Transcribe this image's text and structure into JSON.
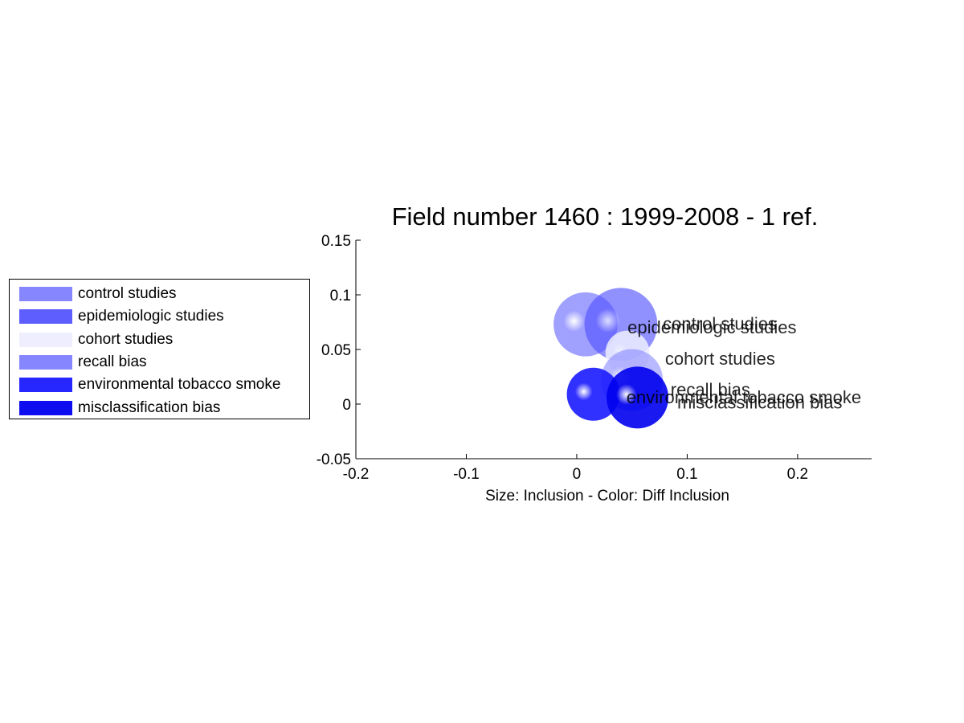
{
  "chart_data": {
    "type": "scatter",
    "title": "Field number 1460 : 1999-2008  - 1 ref.",
    "xlabel": "Size: Inclusion - Color: Diff Inclusion",
    "ylabel": "",
    "xlim": [
      -0.2,
      0.267
    ],
    "ylim": [
      -0.05,
      0.15
    ],
    "xticks": [
      -0.2,
      -0.1,
      0,
      0.1,
      0.2
    ],
    "xtick_labels": [
      "-0.2",
      "-0.1",
      "0",
      "0.1",
      "0.2"
    ],
    "yticks": [
      -0.05,
      0,
      0.05,
      0.1,
      0.15
    ],
    "ytick_labels": [
      "-0.05",
      "0",
      "0.05",
      "0.1",
      "0.15"
    ],
    "grid": false,
    "legend_position": "left-outside",
    "series": [
      {
        "name": "control studies",
        "x": 0.008,
        "y": 0.073,
        "size": 0.029,
        "color": "#8080ff",
        "opacity": 0.75,
        "label_dx": 0.07,
        "label_dy": 0.0
      },
      {
        "name": "epidemiologic studies",
        "x": 0.04,
        "y": 0.073,
        "size": 0.033,
        "color": "#5555ff",
        "opacity": 0.65,
        "label_dx": 0.006,
        "label_dy": -0.003
      },
      {
        "name": "cohort studies",
        "x": 0.046,
        "y": 0.047,
        "size": 0.02,
        "color": "#eeeeff",
        "opacity": 0.85,
        "label_dx": 0.034,
        "label_dy": -0.006
      },
      {
        "name": "recall bias",
        "x": 0.05,
        "y": 0.022,
        "size": 0.028,
        "color": "#8080ff",
        "opacity": 0.55,
        "label_dx": 0.035,
        "label_dy": -0.009
      },
      {
        "name": "environmental tobacco smoke",
        "x": 0.015,
        "y": 0.009,
        "size": 0.024,
        "color": "#1a1aff",
        "opacity": 0.9,
        "label_dx": 0.03,
        "label_dy": -0.003
      },
      {
        "name": "misclassification bias",
        "x": 0.055,
        "y": 0.006,
        "size": 0.028,
        "color": "#0000ee",
        "opacity": 0.9,
        "label_dx": 0.036,
        "label_dy": -0.005
      }
    ]
  }
}
